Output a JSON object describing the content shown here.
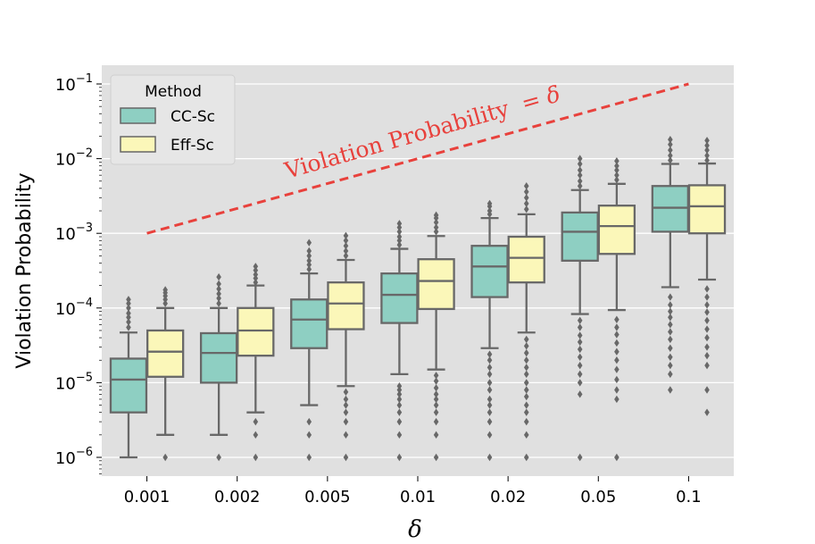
{
  "chart_data": {
    "type": "box",
    "title": "",
    "xlabel": "δ",
    "ylabel": "Violation Probability",
    "yscale": "log",
    "ylim": [
      6e-07,
      0.15
    ],
    "y_ticks": [
      {
        "value": 1e-06,
        "base": "10",
        "exp": "−6"
      },
      {
        "value": 1e-05,
        "base": "10",
        "exp": "−5"
      },
      {
        "value": 0.0001,
        "base": "10",
        "exp": "−4"
      },
      {
        "value": 0.001,
        "base": "10",
        "exp": "−3"
      },
      {
        "value": 0.01,
        "base": "10",
        "exp": "−2"
      },
      {
        "value": 0.1,
        "base": "10",
        "exp": "−1"
      }
    ],
    "categories": [
      "0.001",
      "0.002",
      "0.005",
      "0.01",
      "0.02",
      "0.05",
      "0.1"
    ],
    "legend": {
      "title": "Method",
      "position": "top-left"
    },
    "reference_line": {
      "label": "Violation Probability = δ",
      "label_text": "Violation Probability",
      "label_eq": "= δ",
      "color": "#e8413c",
      "x": [
        "0.001",
        "0.1"
      ],
      "y": [
        0.001,
        0.1
      ]
    },
    "series": [
      {
        "name": "CC-Sc",
        "color": "#8ecfc2",
        "boxes": [
          {
            "whislo": 1e-06,
            "q1": 4e-06,
            "med": 1.1e-05,
            "q3": 2.1e-05,
            "whishi": 4.7e-05,
            "fliers": [
              5.5e-05,
              6.5e-05,
              7.5e-05,
              8.5e-05,
              0.0001,
              0.000115,
              0.00013
            ]
          },
          {
            "whislo": 2e-06,
            "q1": 1e-05,
            "med": 2.5e-05,
            "q3": 4.6e-05,
            "whishi": 0.0001,
            "fliers": [
              1e-06,
              0.000115,
              0.000135,
              0.000155,
              0.00018,
              0.00021,
              0.00026
            ]
          },
          {
            "whislo": 5e-06,
            "q1": 2.9e-05,
            "med": 7e-05,
            "q3": 0.00013,
            "whishi": 0.00029,
            "fliers": [
              1e-06,
              2e-06,
              3e-06,
              0.00033,
              0.00038,
              0.00043,
              0.0005,
              0.00058,
              0.00075
            ]
          },
          {
            "whislo": 1.3e-05,
            "q1": 6.3e-05,
            "med": 0.00015,
            "q3": 0.00029,
            "whishi": 0.00062,
            "fliers": [
              1e-06,
              2e-06,
              3e-06,
              4e-06,
              5e-06,
              6e-06,
              7e-06,
              8e-06,
              9e-06,
              0.0007,
              0.0008,
              0.0009,
              0.00105,
              0.0012,
              0.00135
            ]
          },
          {
            "whislo": 2.9e-05,
            "q1": 0.00014,
            "med": 0.00036,
            "q3": 0.00068,
            "whishi": 0.0016,
            "fliers": [
              1e-06,
              2e-06,
              3e-06,
              4e-06,
              5e-06,
              6e-06,
              8e-06,
              1e-05,
              1.3e-05,
              1.6e-05,
              2e-05,
              2.4e-05,
              0.0018,
              0.002,
              0.0023,
              0.0025
            ]
          },
          {
            "whislo": 8.3e-05,
            "q1": 0.00043,
            "med": 0.00105,
            "q3": 0.0019,
            "whishi": 0.0038,
            "fliers": [
              1e-06,
              7e-06,
              1e-05,
              1.3e-05,
              1.7e-05,
              2.2e-05,
              2.8e-05,
              3.5e-05,
              4.3e-05,
              5.5e-05,
              6.8e-05,
              0.0043,
              0.005,
              0.006,
              0.007,
              0.0085,
              0.01
            ]
          },
          {
            "whislo": 0.00019,
            "q1": 0.00105,
            "med": 0.0022,
            "q3": 0.0043,
            "whishi": 0.0085,
            "fliers": [
              8e-06,
              1.3e-05,
              1.7e-05,
              2.2e-05,
              2.9e-05,
              3.8e-05,
              4.8e-05,
              6e-05,
              7.5e-05,
              9e-05,
              0.00011,
              0.00014,
              0.0095,
              0.011,
              0.013,
              0.0155,
              0.018
            ]
          }
        ]
      },
      {
        "name": "Eff-Sc",
        "color": "#fbf7b9",
        "boxes": [
          {
            "whislo": 2e-06,
            "q1": 1.2e-05,
            "med": 2.6e-05,
            "q3": 5e-05,
            "whishi": 0.0001,
            "fliers": [
              1e-06,
              0.000115,
              0.00013,
              0.000145,
              0.00016,
              0.000175
            ]
          },
          {
            "whislo": 4e-06,
            "q1": 2.3e-05,
            "med": 5e-05,
            "q3": 0.0001,
            "whishi": 0.0002,
            "fliers": [
              1e-06,
              2e-06,
              3e-06,
              0.00022,
              0.00025,
              0.00028,
              0.00032,
              0.00036
            ]
          },
          {
            "whislo": 9e-06,
            "q1": 5.2e-05,
            "med": 0.000115,
            "q3": 0.00022,
            "whishi": 0.00044,
            "fliers": [
              1e-06,
              2e-06,
              3e-06,
              4e-06,
              5e-06,
              6e-06,
              7.5e-06,
              0.0005,
              0.00058,
              0.00068,
              0.0008,
              0.00093
            ]
          },
          {
            "whislo": 1.5e-05,
            "q1": 9.7e-05,
            "med": 0.00023,
            "q3": 0.00045,
            "whishi": 0.00092,
            "fliers": [
              1e-06,
              2e-06,
              3e-06,
              4e-06,
              5e-06,
              6e-06,
              7e-06,
              8.5e-06,
              1.05e-05,
              1.25e-05,
              0.00105,
              0.0012,
              0.0014,
              0.0016,
              0.00175
            ]
          },
          {
            "whislo": 4.7e-05,
            "q1": 0.00022,
            "med": 0.00047,
            "q3": 0.0009,
            "whishi": 0.0018,
            "fliers": [
              1e-06,
              2e-06,
              3e-06,
              4e-06,
              5e-06,
              6.5e-06,
              8e-06,
              1e-05,
              1.3e-05,
              1.6e-05,
              2e-05,
              2.5e-05,
              3.1e-05,
              3.8e-05,
              0.0021,
              0.0025,
              0.003,
              0.0036,
              0.0043
            ]
          },
          {
            "whislo": 9.4e-05,
            "q1": 0.00053,
            "med": 0.00125,
            "q3": 0.00235,
            "whishi": 0.0046,
            "fliers": [
              1e-06,
              6e-06,
              8e-06,
              1.1e-05,
              1.5e-05,
              2e-05,
              2.6e-05,
              3.4e-05,
              4.4e-05,
              5.5e-05,
              7e-05,
              0.0052,
              0.006,
              0.007,
              0.008,
              0.0093
            ]
          },
          {
            "whislo": 0.00024,
            "q1": 0.001,
            "med": 0.0023,
            "q3": 0.0044,
            "whishi": 0.0086,
            "fliers": [
              4e-06,
              8e-06,
              1.7e-05,
              2.3e-05,
              3e-05,
              4e-05,
              5.2e-05,
              6.8e-05,
              8.8e-05,
              0.00011,
              0.00014,
              0.00018,
              0.0095,
              0.011,
              0.013,
              0.015,
              0.0175
            ]
          }
        ]
      }
    ]
  }
}
